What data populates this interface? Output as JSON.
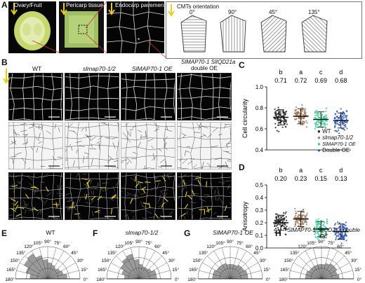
{
  "panelA": {
    "letter": "A",
    "labels": [
      "Ovary/Fruit",
      "Pericarp tissue",
      "Endocarp pavement cells"
    ],
    "cmts_title": "CMTs orientation",
    "angles": [
      "0°",
      "90°",
      "45°",
      "135°"
    ]
  },
  "panelB": {
    "letter": "B",
    "columns": [
      "WT",
      "slmap70-1/2",
      "SlMAP70-1 OE",
      "SlMAP70-1 SlIQD21a",
      "double OE"
    ]
  },
  "panelC": {
    "letter": "C"
  },
  "panelD": {
    "letter": "D"
  },
  "legend": [
    "WT",
    "slmap70-1/2",
    "SlMAP70-1 OE",
    "Double OE"
  ],
  "chart_data": [
    {
      "type": "scatter",
      "ylabel": "Cell circularity",
      "ylim": [
        0.4,
        1.0
      ],
      "yticks": [
        0.4,
        0.6,
        0.8,
        1.0
      ],
      "categories": [
        "WT",
        "slmap70-1/2",
        "SlMAP70-1 OE",
        "Double OE"
      ],
      "means": [
        0.71,
        0.72,
        0.69,
        0.68
      ],
      "letters": [
        "b",
        "a",
        "c",
        "d"
      ],
      "value_labels": [
        "0.71",
        "0.72",
        "0.69",
        "0.68"
      ],
      "colors": [
        "#222222",
        "#a0785a",
        "#2fd48f",
        "#2457c5"
      ]
    },
    {
      "type": "scatter",
      "ylabel": "Anisotropy",
      "ylim": [
        0.0,
        0.5
      ],
      "yticks": [
        0.0,
        0.1,
        0.2,
        0.3,
        0.4,
        0.5
      ],
      "categories": [
        "WT",
        "slmap70-1/2",
        "SlMAP70-1 OE",
        "Double OE"
      ],
      "means": [
        0.2,
        0.23,
        0.15,
        0.13
      ],
      "letters": [
        "b",
        "a",
        "c",
        "d"
      ],
      "value_labels": [
        "0.20",
        "0.23",
        "0.15",
        "0.13"
      ],
      "colors": [
        "#222222",
        "#a0785a",
        "#2fd48f",
        "#2457c5"
      ]
    },
    {
      "type": "bar",
      "polar": true,
      "letter": "E",
      "title": "WT",
      "angle_labels": [
        "180°",
        "165°",
        "150°",
        "135°",
        "120°",
        "105°",
        "90°",
        "75°",
        "60°",
        "45°",
        "30°",
        "15°",
        "0°"
      ],
      "values": [
        0.55,
        0.7,
        0.85,
        0.9,
        0.75,
        0.6,
        0.5,
        0.45,
        0.4,
        0.45,
        0.5,
        0.6
      ]
    },
    {
      "type": "bar",
      "polar": true,
      "letter": "F",
      "title": "slmap70-1/2",
      "angle_labels": [
        "180°",
        "165°",
        "150°",
        "135°",
        "120°",
        "105°",
        "90°",
        "75°",
        "60°",
        "45°",
        "30°",
        "15°",
        "0°"
      ],
      "values": [
        0.45,
        0.55,
        0.65,
        0.75,
        0.8,
        0.6,
        0.45,
        0.4,
        0.4,
        0.45,
        0.55,
        0.55
      ]
    },
    {
      "type": "bar",
      "polar": true,
      "letter": "G",
      "title": "SlMAP70-1 OE",
      "angle_labels": [
        "180°",
        "165°",
        "150°",
        "135°",
        "120°",
        "105°",
        "90°",
        "75°",
        "60°",
        "45°",
        "30°",
        "15°",
        "0°"
      ],
      "values": [
        0.55,
        0.55,
        0.5,
        0.5,
        0.5,
        0.45,
        0.45,
        0.45,
        0.5,
        0.5,
        0.55,
        0.55
      ]
    },
    {
      "type": "bar",
      "polar": true,
      "letter": "H",
      "title": "SlMAP70-1 SlIQD21a double OE",
      "angle_labels": [
        "180°",
        "165°",
        "150°",
        "135°",
        "120°",
        "105°",
        "90°",
        "75°",
        "60°",
        "45°",
        "30°",
        "15°",
        "0°"
      ],
      "values": [
        0.5,
        0.5,
        0.45,
        0.45,
        0.45,
        0.45,
        0.45,
        0.5,
        0.55,
        0.55,
        0.5,
        0.55
      ]
    }
  ]
}
